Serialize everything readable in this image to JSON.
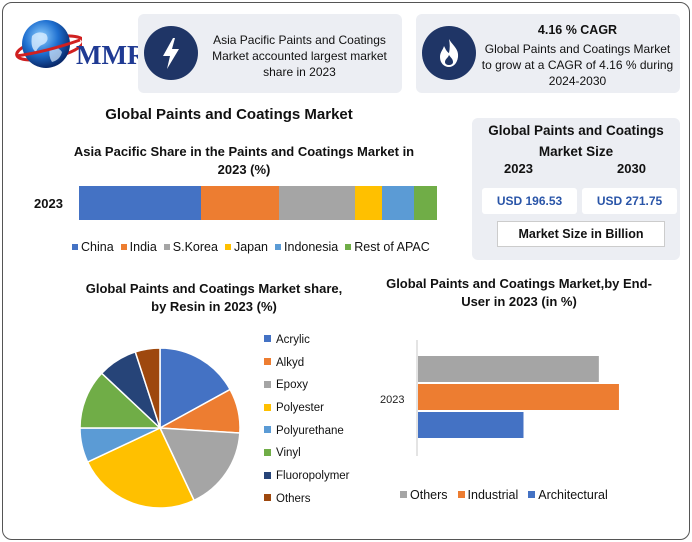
{
  "brand": {
    "name": "MMR"
  },
  "callouts": {
    "apac": {
      "text": "Asia Pacific Paints and Coatings Market accounted largest market share in 2023"
    },
    "cagr": {
      "headline": "4.16 % CAGR",
      "text": "Global Paints and Coatings Market to grow at a CAGR of 4.16 % during 2024-2030"
    }
  },
  "main_title": "Global Paints and Coatings Market",
  "market_size": {
    "title": "Global Paints and Coatings Market Size",
    "year1": "2023",
    "year2": "2030",
    "value1": "USD 196.53",
    "value2": "USD 271.75",
    "unit_label": "Market Size in Billion"
  },
  "colors": {
    "navy": "#1f3566",
    "blue": "#4472c4",
    "orange": "#ed7d31",
    "gray": "#a5a5a5",
    "yellow": "#ffc000",
    "lightblue": "#5b9bd5",
    "green": "#70ad47",
    "darknavy": "#264478",
    "brown": "#9e480e"
  },
  "chart_data": [
    {
      "type": "bar",
      "orientation": "horizontal-stacked",
      "title": "Asia Pacific Share in the Paints and Coatings Market in 2023 (%)",
      "categories": [
        "2023"
      ],
      "series": [
        {
          "name": "China",
          "values": [
            34
          ],
          "color": "#4472c4"
        },
        {
          "name": "India",
          "values": [
            22
          ],
          "color": "#ed7d31"
        },
        {
          "name": "S.Korea",
          "values": [
            21
          ],
          "color": "#a5a5a5"
        },
        {
          "name": "Japan",
          "values": [
            7.5
          ],
          "color": "#ffc000"
        },
        {
          "name": "Indonesia",
          "values": [
            9
          ],
          "color": "#5b9bd5"
        },
        {
          "name": "Rest of APAC",
          "values": [
            6.5
          ],
          "color": "#70ad47"
        }
      ],
      "legend": "bottom"
    },
    {
      "type": "pie",
      "title": "Global Paints and Coatings Market share, by Resin in 2023  (%)",
      "slices": [
        {
          "name": "Acrylic",
          "value": 17,
          "color": "#4472c4"
        },
        {
          "name": "Alkyd",
          "value": 9,
          "color": "#ed7d31"
        },
        {
          "name": "Epoxy",
          "value": 17,
          "color": "#a5a5a5"
        },
        {
          "name": "Polyester",
          "value": 25,
          "color": "#ffc000"
        },
        {
          "name": "Polyurethane",
          "value": 7,
          "color": "#5b9bd5"
        },
        {
          "name": "Vinyl",
          "value": 12,
          "color": "#70ad47"
        },
        {
          "name": "Fluoropolymer",
          "value": 8,
          "color": "#264478"
        },
        {
          "name": "Others",
          "value": 5,
          "color": "#9e480e"
        }
      ],
      "legend": "right"
    },
    {
      "type": "bar",
      "orientation": "horizontal",
      "title": "Global Paints and Coatings Market,by End-User in 2023 (in %)",
      "categories": [
        "2023"
      ],
      "series": [
        {
          "name": "Others",
          "values": [
            36
          ],
          "color": "#a5a5a5"
        },
        {
          "name": "Industrial",
          "values": [
            40
          ],
          "color": "#ed7d31"
        },
        {
          "name": "Architectural",
          "values": [
            21
          ],
          "color": "#4472c4"
        }
      ],
      "xlim": [
        0,
        42
      ],
      "legend": "bottom"
    }
  ]
}
